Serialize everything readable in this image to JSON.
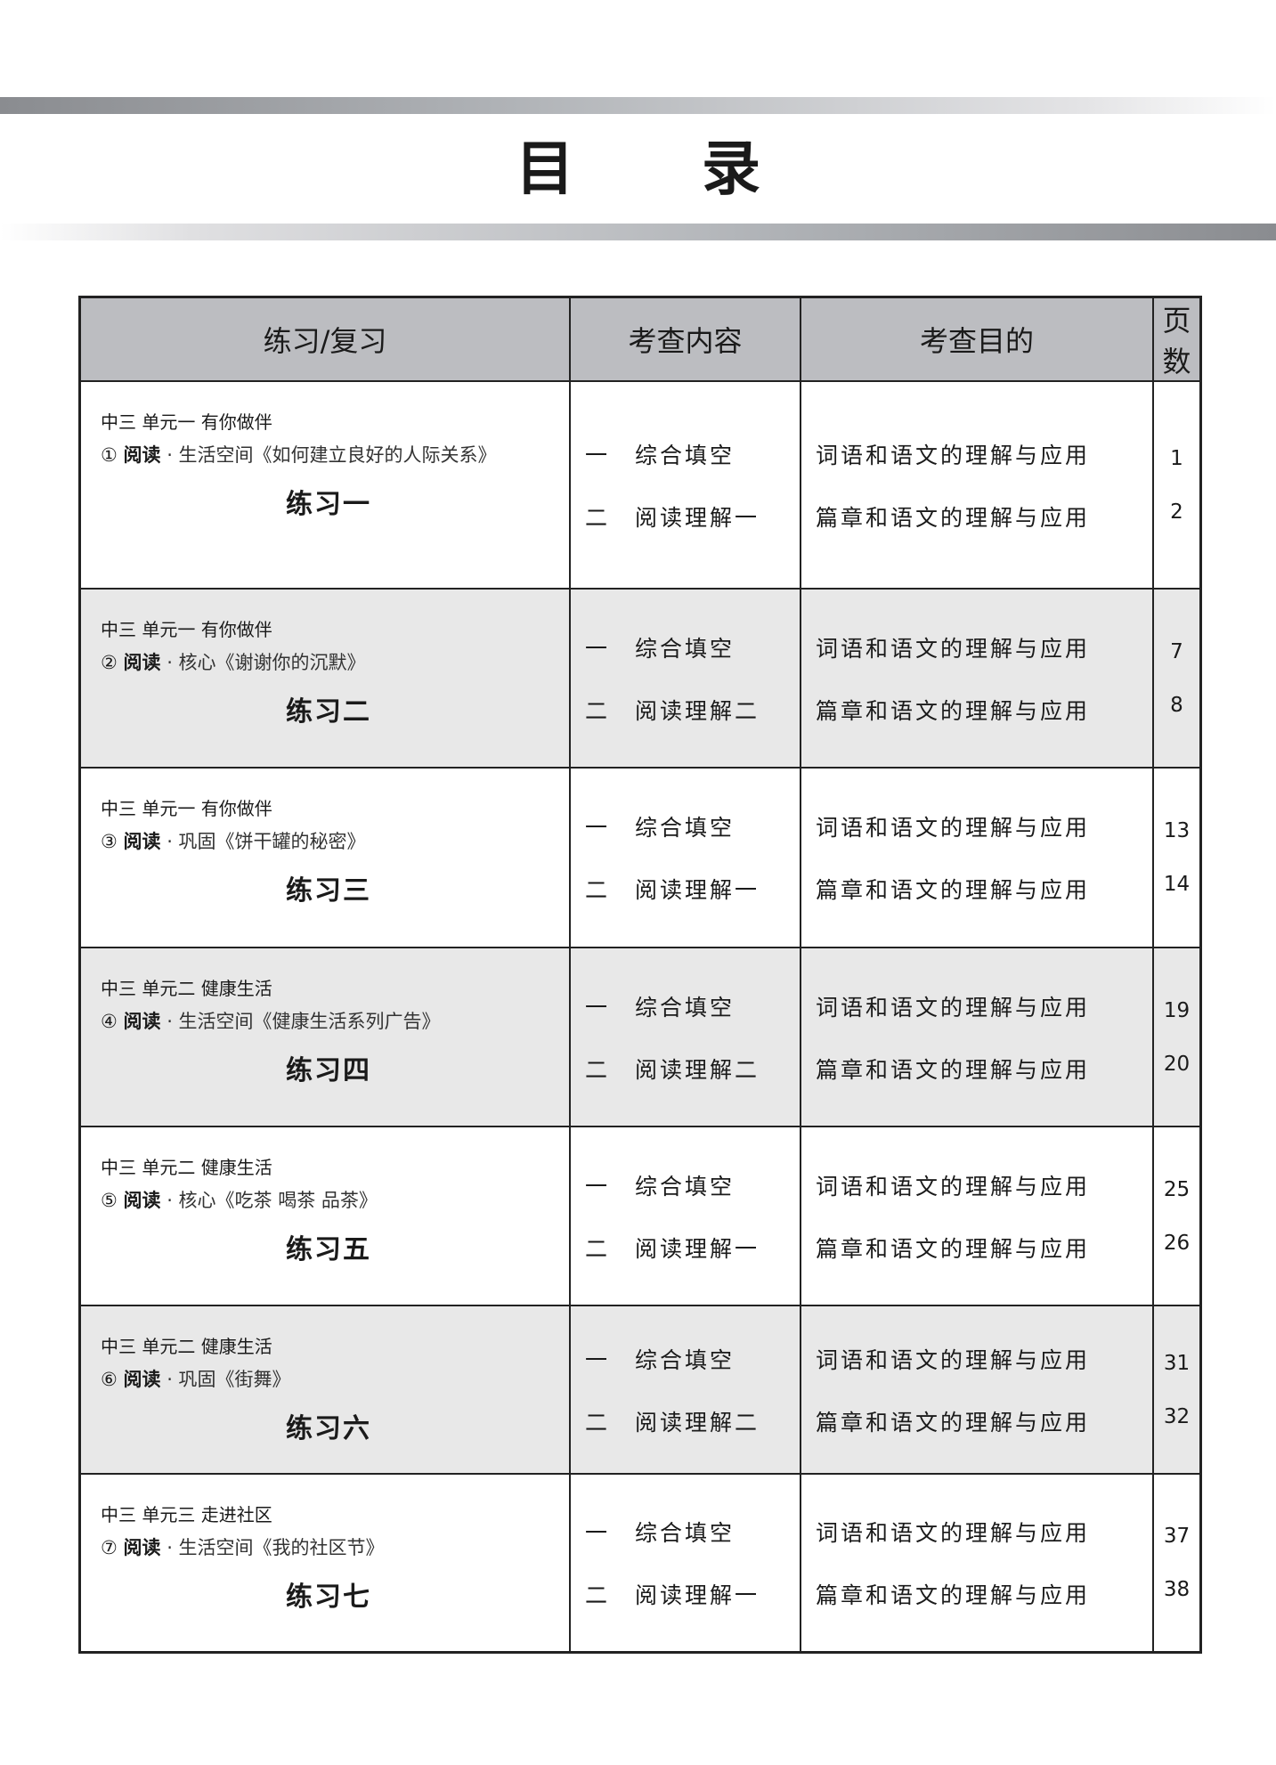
{
  "title": "目 录",
  "headers": [
    "练习/复习",
    "考查内容",
    "考查目的",
    "页数"
  ],
  "rows": [
    {
      "unit": "中三  单元一  有你做伴",
      "num": "①",
      "kind": "阅读",
      "src": " · 生活空间《如何建立良好的人际关系》",
      "exercise": "练习一",
      "contents": [
        {
          "n": "一",
          "t": "综合填空"
        },
        {
          "n": "二",
          "t": "阅读理解一"
        }
      ],
      "goals": [
        "词语和语文的理解与应用",
        "篇章和语文的理解与应用"
      ],
      "pages": [
        "1",
        "2"
      ]
    },
    {
      "unit": "中三  单元一  有你做伴",
      "num": "②",
      "kind": "阅读",
      "src": " · 核心《谢谢你的沉默》",
      "exercise": "练习二",
      "contents": [
        {
          "n": "一",
          "t": "综合填空"
        },
        {
          "n": "二",
          "t": "阅读理解二"
        }
      ],
      "goals": [
        "词语和语文的理解与应用",
        "篇章和语文的理解与应用"
      ],
      "pages": [
        "7",
        "8"
      ]
    },
    {
      "unit": "中三  单元一  有你做伴",
      "num": "③",
      "kind": "阅读",
      "src": " · 巩固《饼干罐的秘密》",
      "exercise": "练习三",
      "contents": [
        {
          "n": "一",
          "t": "综合填空"
        },
        {
          "n": "二",
          "t": "阅读理解一"
        }
      ],
      "goals": [
        "词语和语文的理解与应用",
        "篇章和语文的理解与应用"
      ],
      "pages": [
        "13",
        "14"
      ]
    },
    {
      "unit": "中三  单元二  健康生活",
      "num": "④",
      "kind": "阅读",
      "src": " · 生活空间《健康生活系列广告》",
      "exercise": "练习四",
      "contents": [
        {
          "n": "一",
          "t": "综合填空"
        },
        {
          "n": "二",
          "t": "阅读理解二"
        }
      ],
      "goals": [
        "词语和语文的理解与应用",
        "篇章和语文的理解与应用"
      ],
      "pages": [
        "19",
        "20"
      ]
    },
    {
      "unit": "中三  单元二  健康生活",
      "num": "⑤",
      "kind": "阅读",
      "src": " · 核心《吃茶  喝茶  品茶》",
      "exercise": "练习五",
      "contents": [
        {
          "n": "一",
          "t": "综合填空"
        },
        {
          "n": "二",
          "t": "阅读理解一"
        }
      ],
      "goals": [
        "词语和语文的理解与应用",
        "篇章和语文的理解与应用"
      ],
      "pages": [
        "25",
        "26"
      ]
    },
    {
      "unit": "中三  单元二  健康生活",
      "num": "⑥",
      "kind": "阅读",
      "src": " · 巩固《街舞》",
      "exercise": "练习六",
      "contents": [
        {
          "n": "一",
          "t": "综合填空"
        },
        {
          "n": "二",
          "t": "阅读理解二"
        }
      ],
      "goals": [
        "词语和语文的理解与应用",
        "篇章和语文的理解与应用"
      ],
      "pages": [
        "31",
        "32"
      ]
    },
    {
      "unit": "中三  单元三  走进社区",
      "num": "⑦",
      "kind": "阅读",
      "src": " · 生活空间《我的社区节》",
      "exercise": "练习七",
      "contents": [
        {
          "n": "一",
          "t": "综合填空"
        },
        {
          "n": "二",
          "t": "阅读理解一"
        }
      ],
      "goals": [
        "词语和语文的理解与应用",
        "篇章和语文的理解与应用"
      ],
      "pages": [
        "37",
        "38"
      ]
    }
  ]
}
